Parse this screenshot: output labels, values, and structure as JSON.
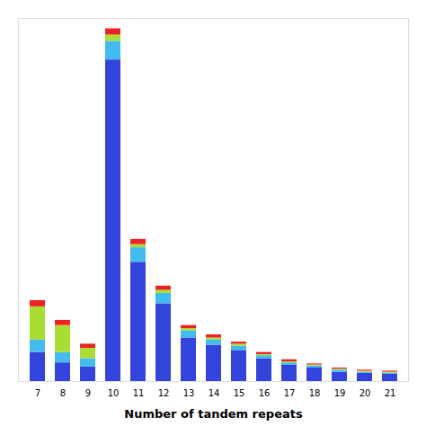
{
  "chart_data": {
    "type": "bar",
    "stacked": true,
    "xlabel": "Number of tandem repeats",
    "categories": [
      "7",
      "8",
      "9",
      "10",
      "11",
      "12",
      "13",
      "14",
      "15",
      "16",
      "17",
      "18",
      "19",
      "20",
      "21"
    ],
    "series": [
      {
        "color": "#3344dd",
        "values": [
          28,
          18,
          14,
          310,
          115,
          75,
          42,
          35,
          30,
          22,
          16,
          13,
          9,
          8,
          7
        ]
      },
      {
        "color": "#44bbee",
        "values": [
          12,
          10,
          8,
          18,
          14,
          10,
          7,
          5,
          4,
          3,
          2,
          2,
          2,
          1,
          1
        ]
      },
      {
        "color": "#aadd33",
        "values": [
          32,
          26,
          10,
          6,
          3,
          3,
          2,
          2,
          2,
          1,
          1,
          1,
          1,
          1,
          1
        ]
      },
      {
        "color": "#ee2222",
        "values": [
          6,
          5,
          4,
          6,
          5,
          4,
          3,
          3,
          2,
          2,
          2,
          1,
          1,
          1,
          1
        ]
      }
    ],
    "ylim": [
      0,
      350
    ],
    "tick_labels": "x",
    "grid": false
  }
}
